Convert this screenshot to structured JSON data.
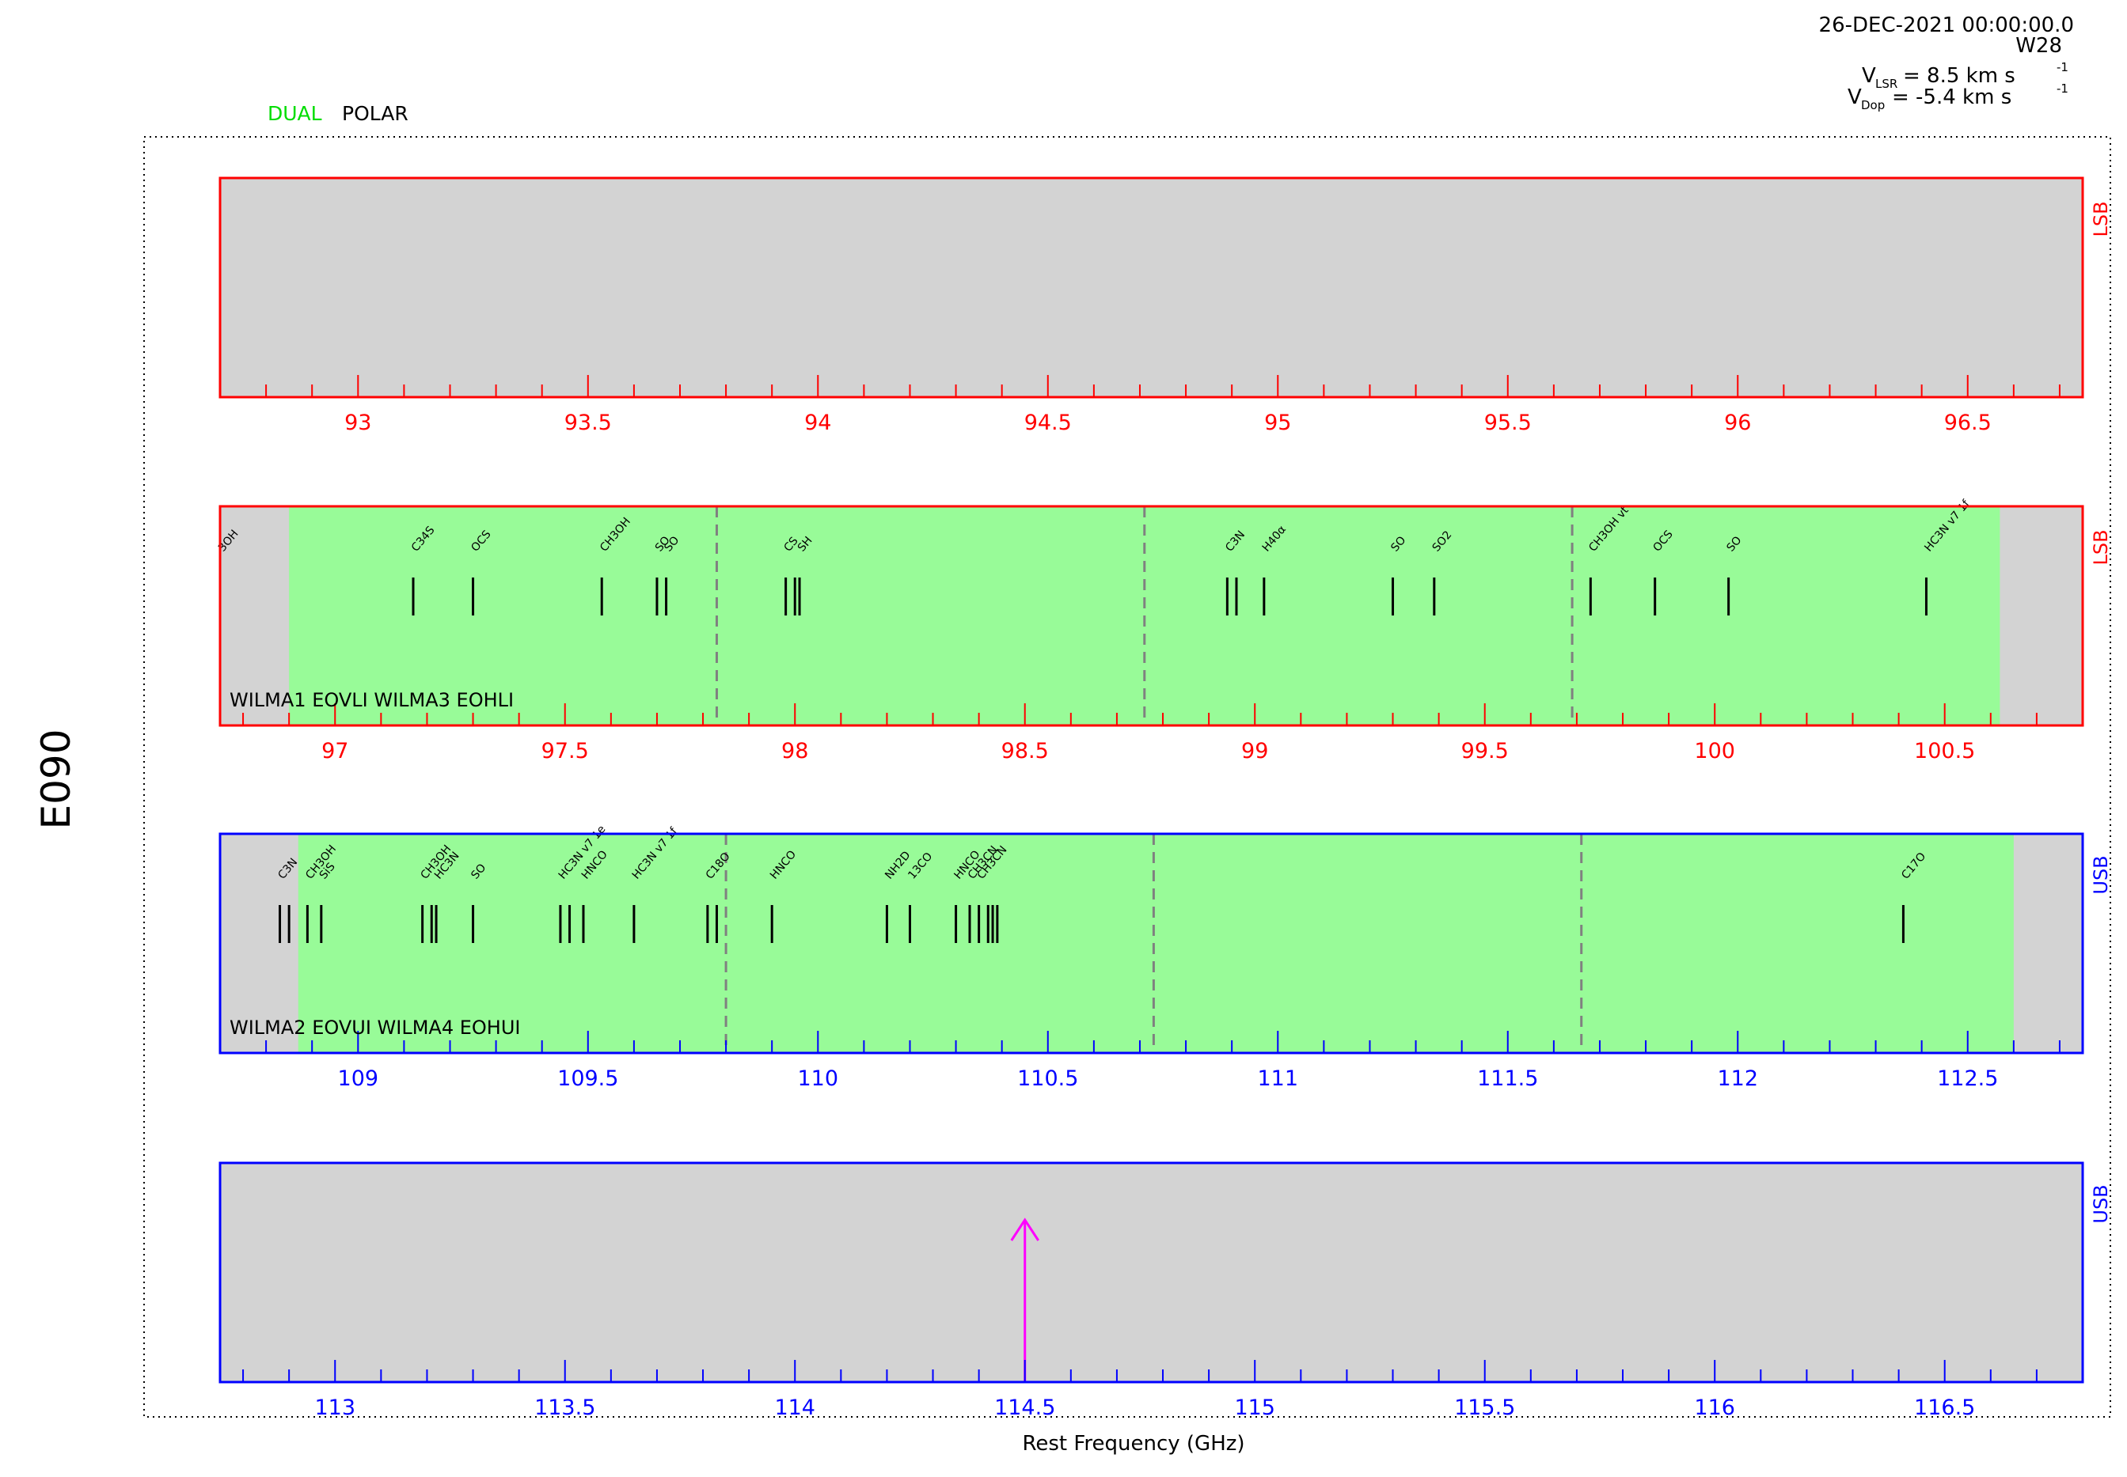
{
  "header": {
    "datetime": "26-DEC-2021 00:00:00.0",
    "source": "W28",
    "vlsr": {
      "symbol": "V",
      "sub": "LSR",
      "value": "= 8.5 km s",
      "sup": "-1"
    },
    "vdop": {
      "symbol": "V",
      "sub": "Dop",
      "value": "= -5.4 km s",
      "sup": "-1"
    },
    "mode_dual": "DUAL",
    "mode_polar": "POLAR",
    "project": "E090",
    "xlabel": "Rest Frequency (GHz)"
  },
  "colors": {
    "lsb": "#ff0000",
    "usb": "#0000ff",
    "covered": "#98fb98",
    "background": "#d3d3d3",
    "line": "#000000",
    "chunk_divider": "#808080",
    "tuning_arrow": "#ff00ff",
    "dual": "#00dd00"
  },
  "chart_data": [
    {
      "type": "bar",
      "sideband": "LSB",
      "xlim": [
        92.7,
        96.75
      ],
      "ticks": [
        "93",
        "93.5",
        "94",
        "94.5",
        "95",
        "95.5",
        "96",
        "96.5"
      ],
      "tick_values": [
        93,
        93.5,
        94,
        94.5,
        95,
        95.5,
        96,
        96.5
      ],
      "coverage": null,
      "dividers": [],
      "label": "",
      "lines": []
    },
    {
      "type": "bar",
      "sideband": "LSB",
      "xlim": [
        96.75,
        100.8
      ],
      "ticks": [
        "97",
        "97.5",
        "98",
        "98.5",
        "99",
        "99.5",
        "100",
        "100.5"
      ],
      "tick_values": [
        97,
        97.5,
        98,
        98.5,
        99,
        99.5,
        100,
        100.5
      ],
      "coverage": [
        96.9,
        100.62
      ],
      "dividers": [
        97.83,
        98.76,
        99.69
      ],
      "label": "WILMA1 EOVLI WILMA3 EOHLI",
      "lines": [
        {
          "f": 96.75,
          "name": "3OH"
        },
        {
          "f": 97.17,
          "name": "C34S"
        },
        {
          "f": 97.3,
          "name": "OCS"
        },
        {
          "f": 97.58,
          "name": "CH3OH"
        },
        {
          "f": 97.7,
          "name": "SO"
        },
        {
          "f": 97.72,
          "name": "SO"
        },
        {
          "f": 97.98,
          "name": "CS"
        },
        {
          "f": 98.0,
          "name": ""
        },
        {
          "f": 98.01,
          "name": "SH"
        },
        {
          "f": 98.94,
          "name": "C3N"
        },
        {
          "f": 98.96,
          "name": ""
        },
        {
          "f": 99.02,
          "name": "H40α"
        },
        {
          "f": 99.3,
          "name": "SO"
        },
        {
          "f": 99.39,
          "name": "SO2"
        },
        {
          "f": 99.73,
          "name": "CH3OH vt"
        },
        {
          "f": 99.87,
          "name": "OCS"
        },
        {
          "f": 100.03,
          "name": "SO"
        },
        {
          "f": 100.46,
          "name": "HC3N v7 1f"
        }
      ]
    },
    {
      "type": "bar",
      "sideband": "USB",
      "xlim": [
        108.7,
        112.75
      ],
      "ticks": [
        "109",
        "109.5",
        "110",
        "110.5",
        "111",
        "111.5",
        "112",
        "112.5"
      ],
      "tick_values": [
        109,
        109.5,
        110,
        110.5,
        111,
        111.5,
        112,
        112.5
      ],
      "coverage": [
        108.87,
        112.6
      ],
      "dividers": [
        109.8,
        110.73,
        111.66
      ],
      "label": "WILMA2 EOVUI WILMA4 EOHUI",
      "lines": [
        {
          "f": 108.83,
          "name": "C3N"
        },
        {
          "f": 108.85,
          "name": ""
        },
        {
          "f": 108.89,
          "name": "CH3OH"
        },
        {
          "f": 108.92,
          "name": "SiS"
        },
        {
          "f": 109.14,
          "name": "CH3OH"
        },
        {
          "f": 109.16,
          "name": ""
        },
        {
          "f": 109.17,
          "name": "HC3N"
        },
        {
          "f": 109.25,
          "name": "SO"
        },
        {
          "f": 109.44,
          "name": "HC3N v7 1e"
        },
        {
          "f": 109.46,
          "name": ""
        },
        {
          "f": 109.49,
          "name": "HNCO"
        },
        {
          "f": 109.6,
          "name": "HC3N v7 1f"
        },
        {
          "f": 109.76,
          "name": "C18O"
        },
        {
          "f": 109.78,
          "name": ""
        },
        {
          "f": 109.9,
          "name": "HNCO"
        },
        {
          "f": 110.15,
          "name": "NH2D"
        },
        {
          "f": 110.2,
          "name": "13CO"
        },
        {
          "f": 110.3,
          "name": "HNCO"
        },
        {
          "f": 110.33,
          "name": "CH3CN"
        },
        {
          "f": 110.35,
          "name": "CH3CN"
        },
        {
          "f": 110.37,
          "name": ""
        },
        {
          "f": 110.38,
          "name": ""
        },
        {
          "f": 110.39,
          "name": ""
        },
        {
          "f": 112.36,
          "name": "C17O"
        }
      ]
    },
    {
      "type": "bar",
      "sideband": "USB",
      "xlim": [
        112.75,
        116.8
      ],
      "ticks": [
        "113",
        "113.5",
        "114",
        "114.5",
        "115",
        "115.5",
        "116",
        "116.5"
      ],
      "tick_values": [
        113,
        113.5,
        114,
        114.5,
        115,
        115.5,
        116,
        116.5
      ],
      "coverage": null,
      "dividers": [],
      "label": "",
      "tuning": 114.5,
      "lines": []
    }
  ]
}
